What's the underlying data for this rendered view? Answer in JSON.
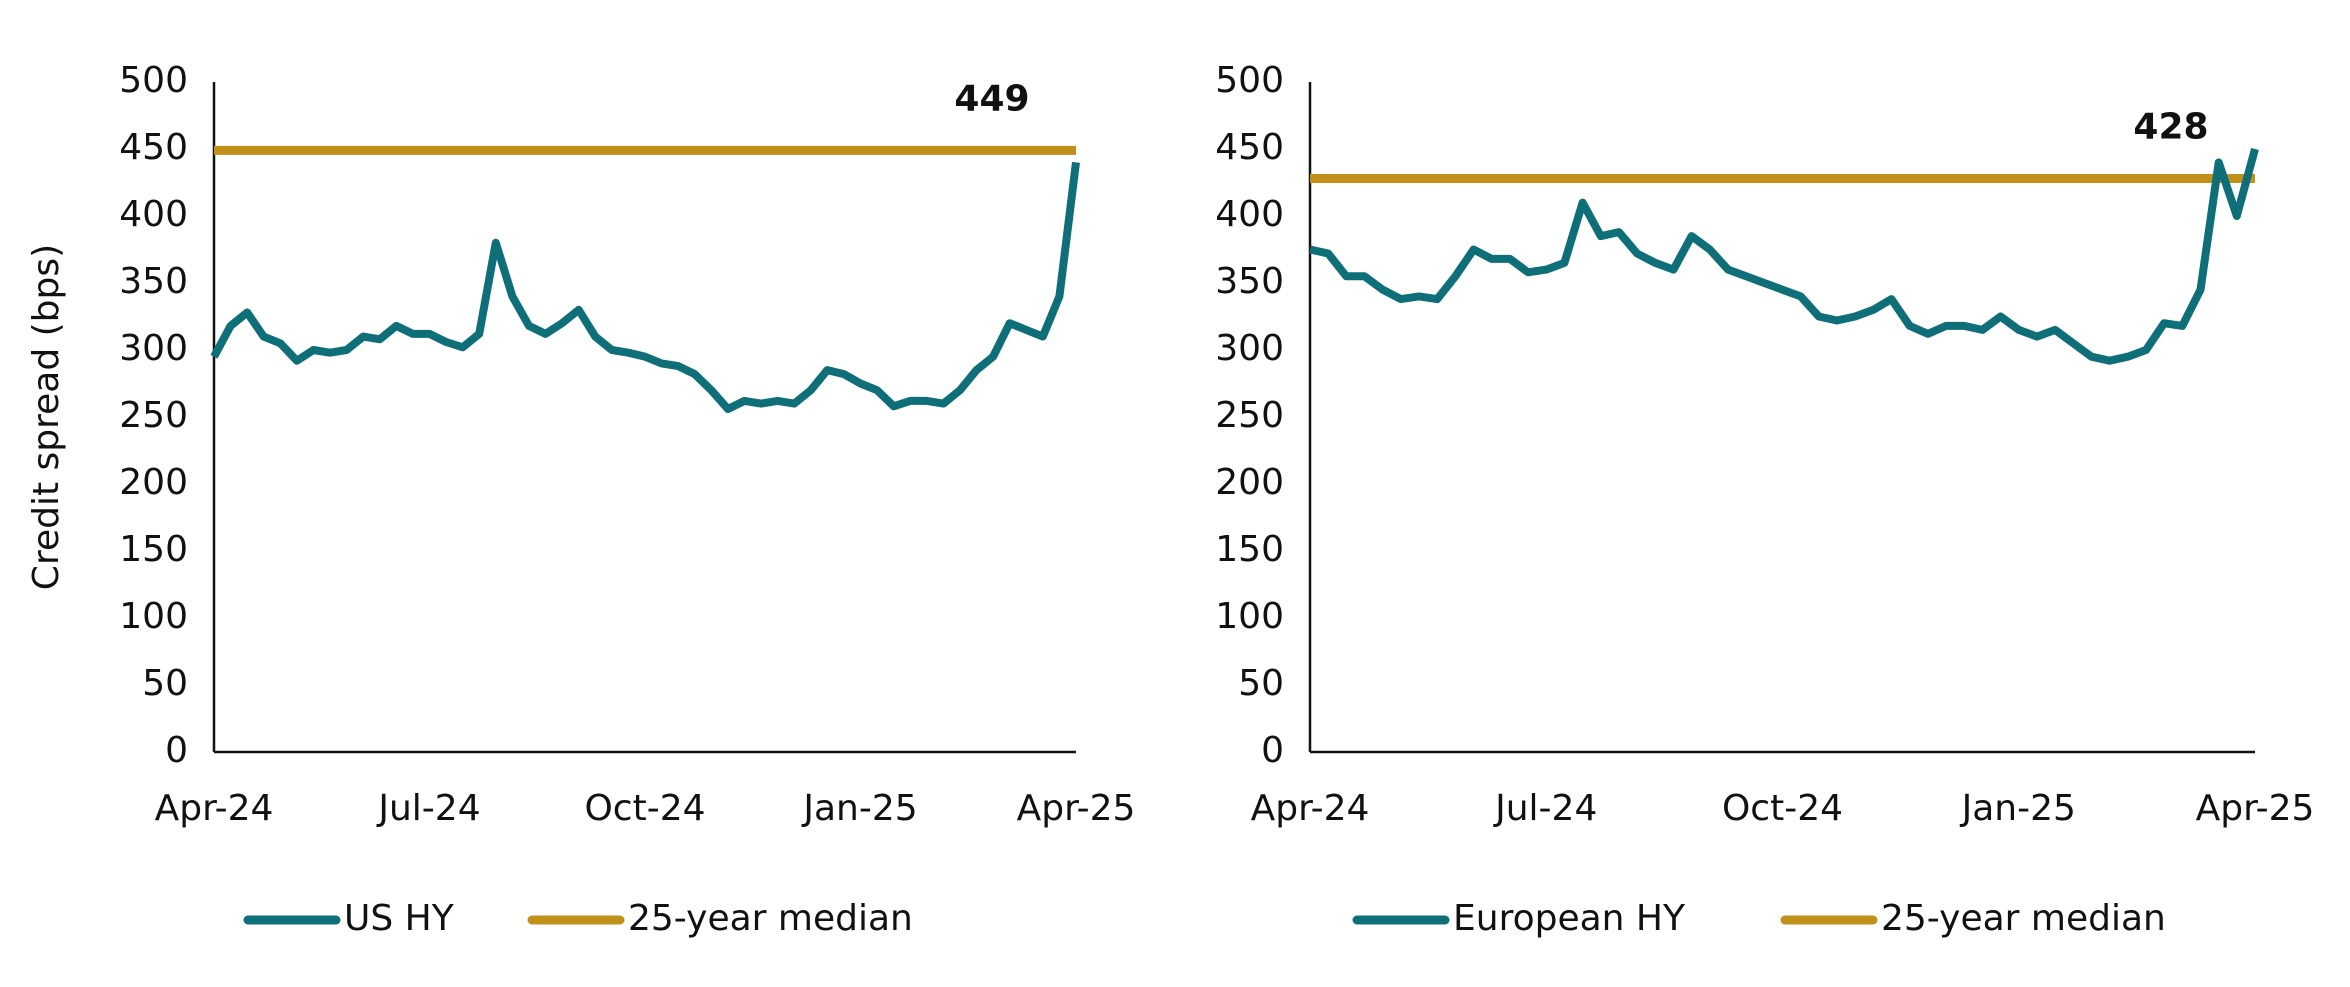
{
  "chart_data": [
    {
      "type": "line",
      "y_label": "Credit spread (bps)",
      "x": [
        0,
        1,
        2,
        3,
        4,
        5,
        6,
        7,
        8,
        9,
        10,
        11,
        12,
        13,
        14,
        15,
        16,
        17,
        18,
        19,
        20,
        21,
        22,
        23,
        24,
        25,
        26,
        27,
        28,
        29,
        30,
        31,
        32,
        33,
        34,
        35,
        36,
        37,
        38,
        39,
        40,
        41,
        42,
        43,
        44,
        45,
        46,
        47,
        48,
        49,
        50,
        51,
        52
      ],
      "xlim": [
        0,
        52
      ],
      "xticks": [
        {
          "value": 0,
          "label": "Apr-24"
        },
        {
          "value": 13,
          "label": "Jul-24"
        },
        {
          "value": 26,
          "label": "Oct-24"
        },
        {
          "value": 39,
          "label": "Jan-25"
        },
        {
          "value": 52,
          "label": "Apr-25"
        }
      ],
      "ylim": [
        0,
        500
      ],
      "yticks": [
        0,
        50,
        100,
        150,
        200,
        250,
        300,
        350,
        400,
        450,
        500
      ],
      "series": [
        {
          "name": "US HY",
          "color": "#0e6f78",
          "values": [
            295,
            318,
            328,
            310,
            305,
            292,
            300,
            298,
            300,
            310,
            308,
            318,
            312,
            312,
            306,
            302,
            312,
            380,
            340,
            318,
            312,
            320,
            330,
            310,
            300,
            298,
            295,
            290,
            288,
            282,
            270,
            256,
            262,
            260,
            262,
            260,
            270,
            285,
            282,
            275,
            270,
            258,
            262,
            262,
            260,
            270,
            285,
            295,
            320,
            315,
            310,
            340,
            440
          ]
        }
      ],
      "median": {
        "name": "25-year median",
        "color": "#c0901a",
        "value": 449
      }
    },
    {
      "type": "line",
      "x": [
        0,
        1,
        2,
        3,
        4,
        5,
        6,
        7,
        8,
        9,
        10,
        11,
        12,
        13,
        14,
        15,
        16,
        17,
        18,
        19,
        20,
        21,
        22,
        23,
        24,
        25,
        26,
        27,
        28,
        29,
        30,
        31,
        32,
        33,
        34,
        35,
        36,
        37,
        38,
        39,
        40,
        41,
        42,
        43,
        44,
        45,
        46,
        47,
        48,
        49,
        50,
        51,
        52
      ],
      "xlim": [
        0,
        52
      ],
      "xticks": [
        {
          "value": 0,
          "label": "Apr-24"
        },
        {
          "value": 13,
          "label": "Jul-24"
        },
        {
          "value": 26,
          "label": "Oct-24"
        },
        {
          "value": 39,
          "label": "Jan-25"
        },
        {
          "value": 52,
          "label": "Apr-25"
        }
      ],
      "ylim": [
        0,
        500
      ],
      "yticks": [
        0,
        50,
        100,
        150,
        200,
        250,
        300,
        350,
        400,
        450,
        500
      ],
      "series": [
        {
          "name": "European HY",
          "color": "#0e6f78",
          "values": [
            375,
            372,
            355,
            355,
            345,
            338,
            340,
            338,
            355,
            375,
            368,
            368,
            358,
            360,
            365,
            410,
            385,
            388,
            372,
            365,
            360,
            385,
            375,
            360,
            355,
            350,
            345,
            340,
            325,
            322,
            325,
            330,
            338,
            318,
            312,
            318,
            318,
            315,
            325,
            315,
            310,
            315,
            305,
            295,
            292,
            295,
            300,
            320,
            318,
            345,
            440,
            400,
            450
          ]
        }
      ],
      "median": {
        "name": "25-year median",
        "color": "#c0901a",
        "value": 428
      }
    }
  ]
}
